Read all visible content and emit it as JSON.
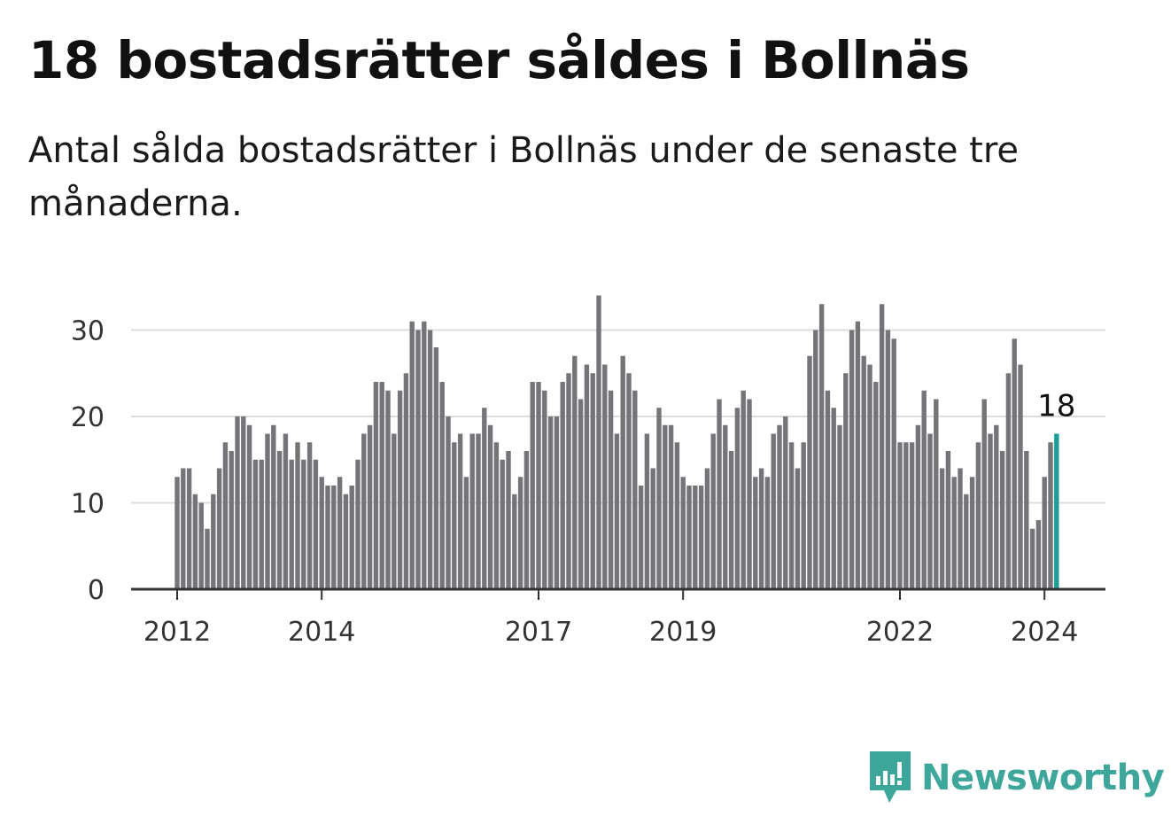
{
  "title": "18 bostadsrätter såldes i Bollnäs",
  "subtitle": "Antal sålda bostadsrätter i Bollnäs under de senaste tre månaderna.",
  "brand": {
    "name": "Newsworthy",
    "icon": "newsworthy-logo-icon",
    "color": "#3fa69c"
  },
  "colors": {
    "bar": "#747479",
    "highlight": "#1a9e96",
    "grid": "#dddddd",
    "axis": "#333333"
  },
  "chart_data": {
    "type": "bar",
    "title": "18 bostadsrätter såldes i Bollnäs",
    "xlabel": "",
    "ylabel": "",
    "ylim": [
      0,
      35
    ],
    "yticks": [
      0,
      10,
      20,
      30
    ],
    "grid": true,
    "x_start": "2012-01",
    "x_tick_labels": [
      "2012",
      "2014",
      "2017",
      "2019",
      "2022",
      "2024"
    ],
    "values": [
      13,
      14,
      14,
      11,
      10,
      7,
      11,
      14,
      17,
      16,
      20,
      20,
      19,
      15,
      15,
      18,
      19,
      16,
      18,
      15,
      17,
      15,
      17,
      15,
      13,
      12,
      12,
      13,
      11,
      12,
      15,
      18,
      19,
      24,
      24,
      23,
      18,
      23,
      25,
      31,
      30,
      31,
      30,
      28,
      24,
      20,
      17,
      18,
      13,
      18,
      18,
      21,
      19,
      17,
      15,
      16,
      11,
      13,
      16,
      24,
      24,
      23,
      20,
      20,
      24,
      25,
      27,
      22,
      26,
      25,
      34,
      26,
      23,
      18,
      27,
      25,
      23,
      12,
      18,
      14,
      21,
      19,
      19,
      17,
      13,
      12,
      12,
      12,
      14,
      18,
      22,
      19,
      16,
      21,
      23,
      22,
      13,
      14,
      13,
      18,
      19,
      20,
      17,
      14,
      17,
      27,
      30,
      33,
      23,
      21,
      19,
      25,
      30,
      31,
      27,
      26,
      24,
      33,
      30,
      29,
      17,
      17,
      17,
      19,
      23,
      18,
      22,
      14,
      16,
      13,
      14,
      11,
      13,
      17,
      22,
      18,
      19,
      16,
      25,
      29,
      26,
      16,
      7,
      8,
      13,
      17,
      18
    ],
    "highlight": {
      "index": 146,
      "value": 18,
      "label": "18"
    }
  }
}
